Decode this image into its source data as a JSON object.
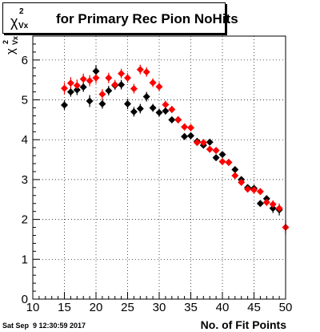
{
  "title": {
    "symbol": "χ",
    "superscript": "2",
    "subscript": "Vx",
    "text": "for Primary Rec Pion NoHits"
  },
  "timestamp": "Sat Sep  9 12:30:59 2017",
  "colors": {
    "series_black": "#000000",
    "series_red": "#ff0000",
    "frame": "#000000",
    "grid": "#000000"
  },
  "chart_data": {
    "type": "scatter",
    "xlabel": "No. of Fit Points",
    "ylabel_symbol": "χ",
    "ylabel_sup": "2",
    "ylabel_sub": "Vx",
    "xlim": [
      10,
      50
    ],
    "ylim": [
      0,
      6.6
    ],
    "xticks": [
      10,
      15,
      20,
      25,
      30,
      35,
      40,
      45,
      50
    ],
    "yticks": [
      0,
      1,
      2,
      3,
      4,
      5,
      6
    ],
    "grid": true,
    "marker": "diamond",
    "series": [
      {
        "color": "#000000",
        "points": [
          {
            "x": 15,
            "y": 4.87,
            "err": 0.12
          },
          {
            "x": 16,
            "y": 5.2,
            "err": 0.12
          },
          {
            "x": 17,
            "y": 5.25,
            "err": 0.13
          },
          {
            "x": 18,
            "y": 5.32,
            "err": 0.12
          },
          {
            "x": 19,
            "y": 4.97,
            "err": 0.15
          },
          {
            "x": 20,
            "y": 5.72,
            "err": 0.15
          },
          {
            "x": 21,
            "y": 4.9,
            "err": 0.12
          },
          {
            "x": 22,
            "y": 5.23,
            "err": 0.12
          },
          {
            "x": 23,
            "y": 5.36,
            "err": 0.11
          },
          {
            "x": 24,
            "y": 5.38,
            "err": 0.12
          },
          {
            "x": 25,
            "y": 4.9,
            "err": 0.13
          },
          {
            "x": 26,
            "y": 4.7,
            "err": 0.12
          },
          {
            "x": 27,
            "y": 4.78,
            "err": 0.12
          },
          {
            "x": 28,
            "y": 5.08,
            "err": 0.12
          },
          {
            "x": 29,
            "y": 4.8,
            "err": 0.1
          },
          {
            "x": 30,
            "y": 4.68,
            "err": 0.1
          },
          {
            "x": 31,
            "y": 4.72,
            "err": 0.09
          },
          {
            "x": 32,
            "y": 4.5,
            "err": 0.08
          },
          {
            "x": 33,
            "y": 4.5,
            "err": 0.08
          },
          {
            "x": 34,
            "y": 4.08,
            "err": 0.08
          },
          {
            "x": 35,
            "y": 4.1,
            "err": 0.08
          },
          {
            "x": 36,
            "y": 3.96,
            "err": 0.08
          },
          {
            "x": 37,
            "y": 3.86,
            "err": 0.07
          },
          {
            "x": 38,
            "y": 3.94,
            "err": 0.07
          },
          {
            "x": 39,
            "y": 3.55,
            "err": 0.07
          },
          {
            "x": 40,
            "y": 3.63,
            "err": 0.07
          },
          {
            "x": 41,
            "y": 3.43,
            "err": 0.07
          },
          {
            "x": 42,
            "y": 3.25,
            "err": 0.07
          },
          {
            "x": 43,
            "y": 3.0,
            "err": 0.07
          },
          {
            "x": 44,
            "y": 2.8,
            "err": 0.07
          },
          {
            "x": 45,
            "y": 2.78,
            "err": 0.07
          },
          {
            "x": 46,
            "y": 2.4,
            "err": 0.08
          },
          {
            "x": 47,
            "y": 2.52,
            "err": 0.08
          },
          {
            "x": 48,
            "y": 2.28,
            "err": 0.12
          },
          {
            "x": 49,
            "y": 2.24,
            "err": 0.14
          }
        ]
      },
      {
        "color": "#ff0000",
        "points": [
          {
            "x": 15,
            "y": 5.29,
            "err": 0.15
          },
          {
            "x": 16,
            "y": 5.42,
            "err": 0.15
          },
          {
            "x": 17,
            "y": 5.36,
            "err": 0.15
          },
          {
            "x": 18,
            "y": 5.52,
            "err": 0.14
          },
          {
            "x": 19,
            "y": 5.48,
            "err": 0.14
          },
          {
            "x": 20,
            "y": 5.55,
            "err": 0.14
          },
          {
            "x": 21,
            "y": 5.14,
            "err": 0.13
          },
          {
            "x": 22,
            "y": 5.55,
            "err": 0.13
          },
          {
            "x": 23,
            "y": 5.38,
            "err": 0.12
          },
          {
            "x": 24,
            "y": 5.66,
            "err": 0.12
          },
          {
            "x": 25,
            "y": 5.55,
            "err": 0.12
          },
          {
            "x": 26,
            "y": 5.28,
            "err": 0.12
          },
          {
            "x": 27,
            "y": 5.76,
            "err": 0.12
          },
          {
            "x": 28,
            "y": 5.7,
            "err": 0.12
          },
          {
            "x": 29,
            "y": 5.43,
            "err": 0.11
          },
          {
            "x": 30,
            "y": 5.33,
            "err": 0.11
          },
          {
            "x": 31,
            "y": 4.88,
            "err": 0.1
          },
          {
            "x": 32,
            "y": 4.76,
            "err": 0.09
          },
          {
            "x": 33,
            "y": 4.5,
            "err": 0.09
          },
          {
            "x": 34,
            "y": 4.32,
            "err": 0.09
          },
          {
            "x": 35,
            "y": 4.3,
            "err": 0.09
          },
          {
            "x": 36,
            "y": 3.93,
            "err": 0.08
          },
          {
            "x": 37,
            "y": 3.93,
            "err": 0.08
          },
          {
            "x": 38,
            "y": 3.76,
            "err": 0.08
          },
          {
            "x": 39,
            "y": 3.73,
            "err": 0.08
          },
          {
            "x": 40,
            "y": 3.45,
            "err": 0.08
          },
          {
            "x": 41,
            "y": 3.43,
            "err": 0.08
          },
          {
            "x": 42,
            "y": 3.1,
            "err": 0.08
          },
          {
            "x": 43,
            "y": 2.93,
            "err": 0.08
          },
          {
            "x": 44,
            "y": 2.76,
            "err": 0.08
          },
          {
            "x": 45,
            "y": 2.74,
            "err": 0.08
          },
          {
            "x": 46,
            "y": 2.7,
            "err": 0.08
          },
          {
            "x": 47,
            "y": 2.43,
            "err": 0.09
          },
          {
            "x": 48,
            "y": 2.38,
            "err": 0.1
          },
          {
            "x": 49,
            "y": 2.28,
            "err": 0.12
          },
          {
            "x": 50,
            "y": 1.8,
            "err": 0.18
          }
        ]
      }
    ]
  }
}
